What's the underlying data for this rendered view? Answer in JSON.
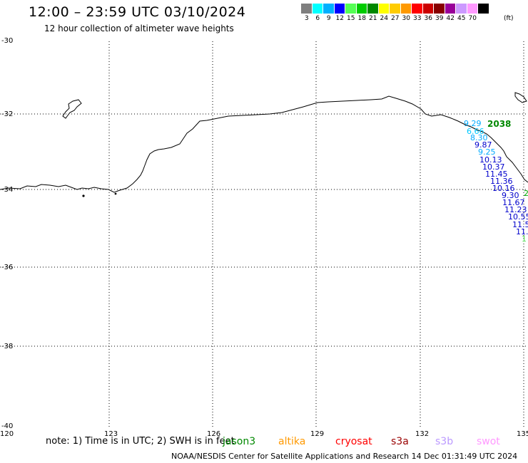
{
  "header": {
    "title": "12:00 – 23:59 UTC 03/10/2024",
    "subtitle": "12 hour collection of altimeter wave heights"
  },
  "legend": {
    "unit": "(ft)",
    "bins": [
      {
        "label": "3",
        "color": "#7f7f7f"
      },
      {
        "label": "6",
        "color": "#00ffff"
      },
      {
        "label": "9",
        "color": "#00b0ff"
      },
      {
        "label": "12",
        "color": "#0000ff"
      },
      {
        "label": "15",
        "color": "#55ff55"
      },
      {
        "label": "18",
        "color": "#00cc00"
      },
      {
        "label": "21",
        "color": "#008800"
      },
      {
        "label": "24",
        "color": "#ffff00"
      },
      {
        "label": "27",
        "color": "#ffcc00"
      },
      {
        "label": "30",
        "color": "#ff9900"
      },
      {
        "label": "33",
        "color": "#ff0000"
      },
      {
        "label": "36",
        "color": "#cc0000"
      },
      {
        "label": "39",
        "color": "#880000"
      },
      {
        "label": "42",
        "color": "#990099"
      },
      {
        "label": "45",
        "color": "#cc99ff"
      },
      {
        "label": "70",
        "color": "#ff99ff"
      },
      {
        "label": "",
        "color": "#000000"
      }
    ]
  },
  "map": {
    "lat_labels": [
      "-30",
      "-32",
      "-34",
      "-36",
      "-38",
      "-40"
    ],
    "lon_labels": [
      "120",
      "123",
      "126",
      "129",
      "132",
      "135"
    ],
    "track_time": "2038",
    "wave_heights": [
      {
        "text": "9.29",
        "color": "#00aaff"
      },
      {
        "text": "6.66",
        "color": "#00c8ff"
      },
      {
        "text": "8.30",
        "color": "#00aaff"
      },
      {
        "text": "9.87",
        "color": "#0000cc"
      },
      {
        "text": "9.25",
        "color": "#00aaff"
      },
      {
        "text": "10.13",
        "color": "#0000cc"
      },
      {
        "text": "10.37",
        "color": "#0000cc"
      },
      {
        "text": "11.45",
        "color": "#0000cc"
      },
      {
        "text": "11.36",
        "color": "#0000cc"
      },
      {
        "text": "10.16",
        "color": "#0000cc"
      },
      {
        "text": "9.30",
        "color": "#0000cc"
      },
      {
        "text": "11.67",
        "color": "#0000cc"
      },
      {
        "text": "11.23",
        "color": "#0000cc"
      },
      {
        "text": "10.55",
        "color": "#0000cc"
      },
      {
        "text": "11.5",
        "color": "#0000cc"
      },
      {
        "text": "11.",
        "color": "#0000cc"
      },
      {
        "text": "1",
        "color": "#55dd55"
      }
    ]
  },
  "footer": {
    "note": "note: 1) Time is in UTC; 2) SWH is in feet",
    "satellites": [
      {
        "name": "jason3",
        "color": "#008800"
      },
      {
        "name": "altika",
        "color": "#ff9900"
      },
      {
        "name": "cryosat",
        "color": "#ff0000"
      },
      {
        "name": "s3a",
        "color": "#990000"
      },
      {
        "name": "s3b",
        "color": "#bb99ff"
      },
      {
        "name": "swot",
        "color": "#ff99ff"
      }
    ],
    "credit": "NOAA/NESDIS Center for Satellite Applications and Research   14 Dec 01:31:49 UTC 2024"
  }
}
